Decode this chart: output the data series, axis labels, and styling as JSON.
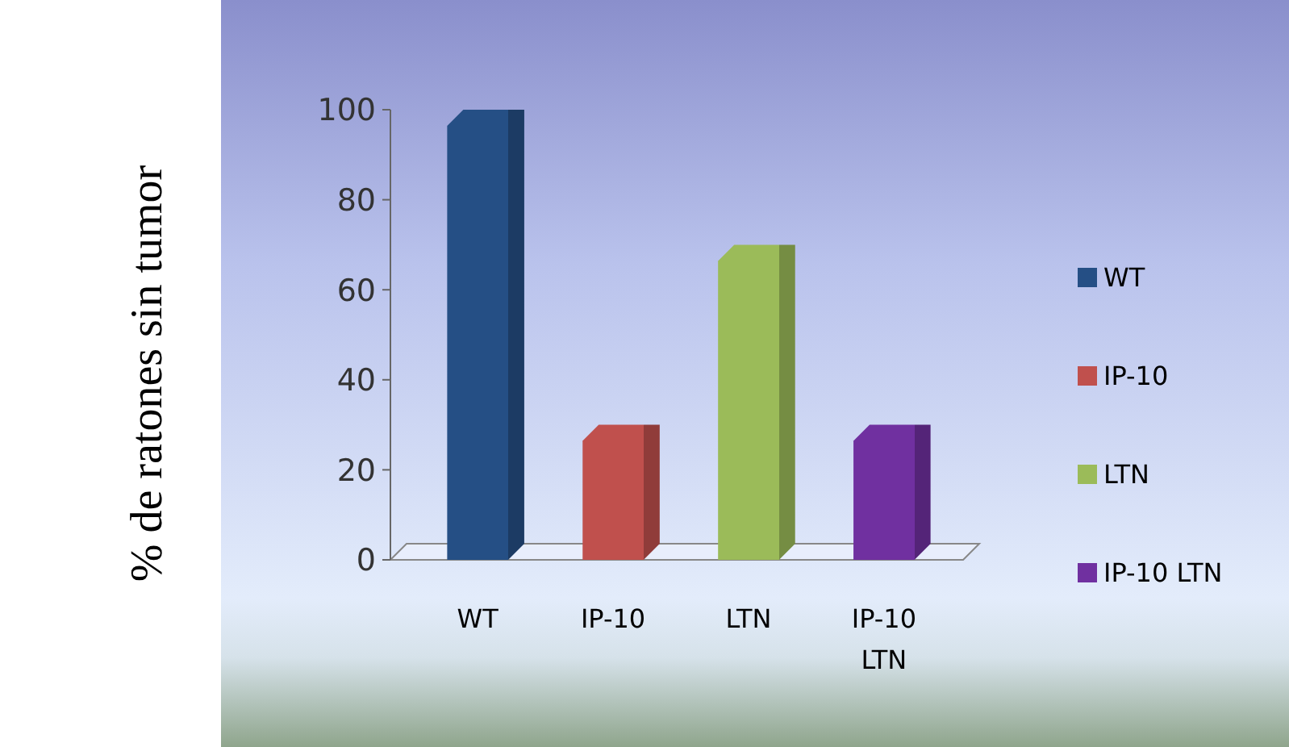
{
  "chart_data": {
    "type": "bar",
    "ylabel": "% de ratones sin tumor",
    "categories": [
      "WT",
      "IP-10",
      "LTN",
      "IP-10 LTN"
    ],
    "series": [
      {
        "name": "WT",
        "color": "#254f85",
        "values": [
          100,
          null,
          null,
          null
        ]
      },
      {
        "name": "IP-10",
        "color": "#c0504d",
        "values": [
          null,
          30,
          null,
          null
        ]
      },
      {
        "name": "LTN",
        "color": "#9bbb59",
        "values": [
          null,
          null,
          70,
          null
        ]
      },
      {
        "name": "IP-10 LTN",
        "color": "#7030a0",
        "values": [
          null,
          null,
          null,
          30
        ]
      }
    ],
    "stacked": true,
    "ylim": [
      0,
      100
    ],
    "yticks": [
      0,
      20,
      40,
      60,
      80,
      100
    ],
    "grid": false,
    "legend": "right"
  }
}
